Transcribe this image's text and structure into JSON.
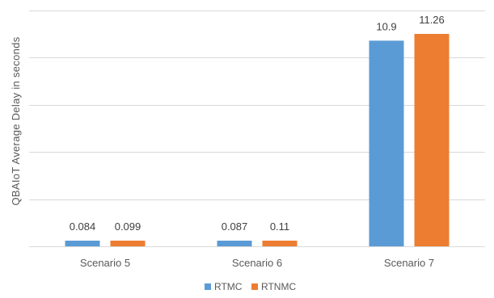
{
  "chart_data": {
    "type": "bar",
    "title": "",
    "xlabel": "",
    "ylabel": "QBAIoT Average Delay in seconds",
    "categories": [
      "Scenario 5",
      "Scenario 6",
      "Scenario 7"
    ],
    "series": [
      {
        "name": "RTMC",
        "values": [
          0.084,
          0.087,
          10.9
        ],
        "labels": [
          "0.084",
          "0.087",
          "10.9"
        ],
        "color": "#5B9BD5"
      },
      {
        "name": "RTNMC",
        "values": [
          0.099,
          0.11,
          11.26
        ],
        "labels": [
          "0.099",
          "0.11",
          "11.26"
        ],
        "color": "#ED7D31"
      }
    ],
    "ylim": [
      0,
      12.5
    ],
    "ytick_step": 2.5,
    "y_tick_labels_shown": false,
    "grid": true,
    "grid_color": "#D9D9D9",
    "legend_position": "bottom-center"
  }
}
